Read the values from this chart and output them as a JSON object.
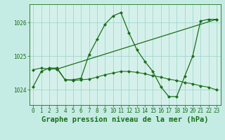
{
  "background_color": "#c5ece4",
  "plot_background": "#d5f0ea",
  "grid_color": "#9fd8d0",
  "line_color": "#1a6e1a",
  "title": "Graphe pression niveau de la mer (hPa)",
  "xlim": [
    -0.5,
    23.5
  ],
  "ylim": [
    1023.55,
    1026.55
  ],
  "yticks": [
    1024,
    1025,
    1026
  ],
  "xticks": [
    0,
    1,
    2,
    3,
    4,
    5,
    6,
    7,
    8,
    9,
    10,
    11,
    12,
    13,
    14,
    15,
    16,
    17,
    18,
    19,
    20,
    21,
    22,
    23
  ],
  "series1_x": [
    0,
    1,
    2,
    3,
    4,
    5,
    6,
    7,
    8,
    9,
    10,
    11,
    12,
    13,
    14,
    15,
    16,
    17,
    18,
    19,
    20,
    21,
    22,
    23
  ],
  "series1_y": [
    1024.1,
    1024.55,
    1024.65,
    1024.65,
    1024.3,
    1024.3,
    1024.35,
    1025.05,
    1025.5,
    1025.95,
    1026.2,
    1026.3,
    1025.7,
    1025.2,
    1024.85,
    1024.55,
    1024.1,
    1023.8,
    1023.8,
    1024.4,
    1025.0,
    1026.05,
    1026.1,
    1026.1
  ],
  "series2_x": [
    0,
    1,
    2,
    3,
    4,
    5,
    6,
    7,
    8,
    9,
    10,
    11,
    12,
    13,
    14,
    15,
    16,
    17,
    18,
    19,
    20,
    21,
    22,
    23
  ],
  "series2_y": [
    1024.6,
    1024.65,
    1024.62,
    1024.62,
    1024.3,
    1024.28,
    1024.3,
    1024.32,
    1024.38,
    1024.45,
    1024.5,
    1024.55,
    1024.55,
    1024.52,
    1024.48,
    1024.42,
    1024.38,
    1024.32,
    1024.28,
    1024.22,
    1024.18,
    1024.12,
    1024.08,
    1024.0
  ],
  "series3_x": [
    3,
    23
  ],
  "series3_y": [
    1024.62,
    1026.1
  ],
  "title_fontsize": 7.5,
  "tick_fontsize": 5.5,
  "markersize": 2.5,
  "linewidth1": 0.9,
  "linewidth2": 0.8,
  "linewidth3": 0.9
}
